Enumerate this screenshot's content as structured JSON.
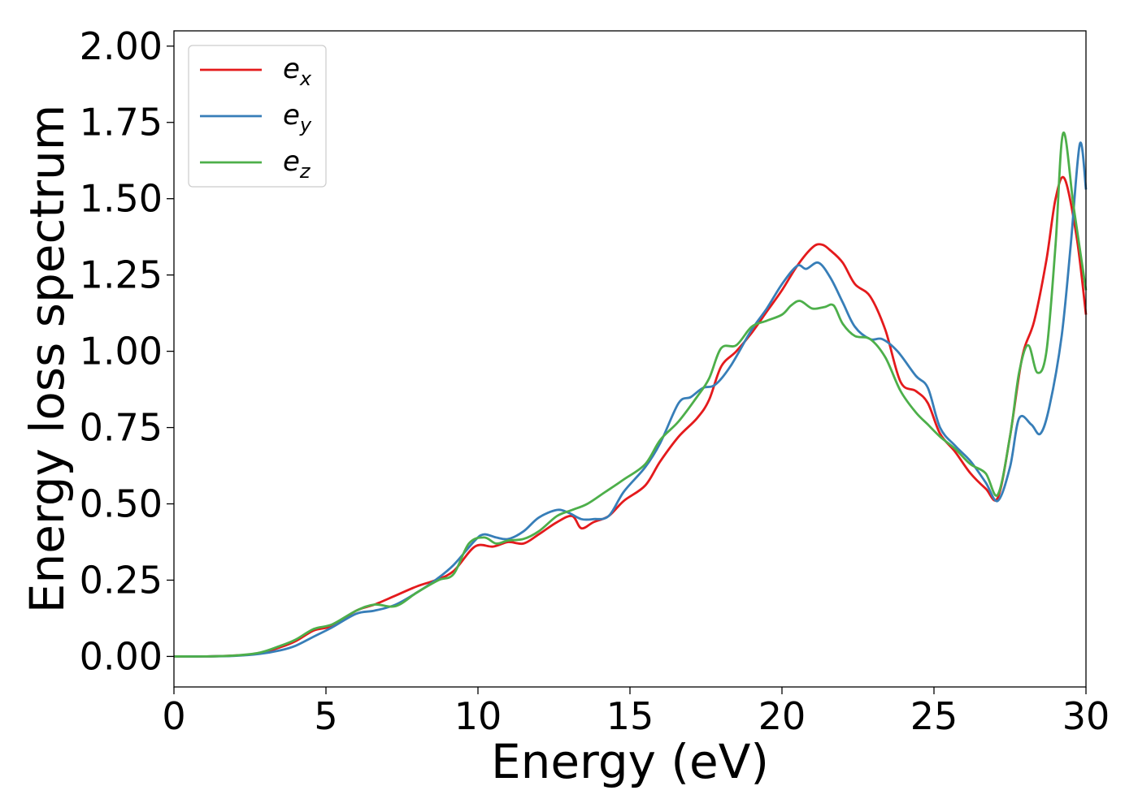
{
  "chart_data": {
    "type": "line",
    "title": "",
    "xlabel": "Energy (eV)",
    "ylabel": "Energy loss spectrum",
    "xlim": [
      0,
      30
    ],
    "ylim": [
      -0.1,
      2.05
    ],
    "xticks": [
      0,
      5,
      10,
      15,
      20,
      25,
      30
    ],
    "xtick_labels": [
      "0",
      "5",
      "10",
      "15",
      "20",
      "25",
      "30"
    ],
    "yticks": [
      0.0,
      0.25,
      0.5,
      0.75,
      1.0,
      1.25,
      1.5,
      1.75,
      2.0
    ],
    "ytick_labels": [
      "0.00",
      "0.25",
      "0.50",
      "0.75",
      "1.00",
      "1.25",
      "1.50",
      "1.75",
      "2.00"
    ],
    "grid": false,
    "legend_position": "top-left",
    "series": [
      {
        "name": "e",
        "subscript": "x",
        "color": "#e41a1c",
        "x": [
          0,
          1,
          2,
          2.8,
          3.5,
          4,
          4.6,
          5.2,
          6,
          6.6,
          7.3,
          8,
          8.6,
          9.2,
          9.9,
          10.5,
          11,
          11.5,
          12,
          12.6,
          13.1,
          13.4,
          13.8,
          14.3,
          14.8,
          15.5,
          16,
          16.6,
          17.2,
          17.6,
          18,
          18.5,
          19,
          19.5,
          20,
          20.5,
          21,
          21.3,
          21.6,
          22,
          22.4,
          22.9,
          23.4,
          23.9,
          24.4,
          24.8,
          25.2,
          25.7,
          26.2,
          26.7,
          27.1,
          27.5,
          27.9,
          28.3,
          28.7,
          29,
          29.3,
          29.7,
          30
        ],
        "y": [
          0.0,
          0.0,
          0.003,
          0.01,
          0.03,
          0.05,
          0.085,
          0.1,
          0.15,
          0.17,
          0.2,
          0.23,
          0.25,
          0.28,
          0.36,
          0.36,
          0.375,
          0.37,
          0.4,
          0.44,
          0.46,
          0.42,
          0.44,
          0.46,
          0.51,
          0.56,
          0.64,
          0.72,
          0.78,
          0.84,
          0.95,
          1.0,
          1.06,
          1.13,
          1.2,
          1.28,
          1.34,
          1.35,
          1.33,
          1.29,
          1.22,
          1.18,
          1.07,
          0.9,
          0.87,
          0.83,
          0.73,
          0.67,
          0.6,
          0.55,
          0.52,
          0.72,
          0.98,
          1.1,
          1.3,
          1.5,
          1.565,
          1.37,
          1.12
        ]
      },
      {
        "name": "e",
        "subscript": "y",
        "color": "#377eb8",
        "x": [
          0,
          1,
          2,
          2.8,
          3.5,
          4,
          4.6,
          5.2,
          6,
          6.6,
          7.3,
          8,
          8.6,
          9.2,
          9.9,
          10.2,
          10.6,
          11,
          11.5,
          12,
          12.6,
          13,
          13.4,
          13.8,
          14.3,
          14.8,
          15.5,
          16,
          16.6,
          17,
          17.4,
          17.8,
          18.3,
          19,
          19.5,
          20,
          20.5,
          20.8,
          21.2,
          21.6,
          22,
          22.4,
          22.9,
          23.3,
          23.8,
          24.4,
          24.8,
          25.2,
          25.7,
          26.2,
          26.7,
          27.1,
          27.5,
          27.8,
          28.2,
          28.5,
          28.8,
          29.2,
          29.5,
          29.8,
          30
        ],
        "y": [
          0.0,
          0.0,
          0.002,
          0.008,
          0.02,
          0.035,
          0.065,
          0.095,
          0.14,
          0.15,
          0.17,
          0.21,
          0.25,
          0.3,
          0.38,
          0.4,
          0.39,
          0.385,
          0.41,
          0.455,
          0.48,
          0.47,
          0.45,
          0.45,
          0.46,
          0.54,
          0.62,
          0.7,
          0.83,
          0.85,
          0.88,
          0.89,
          0.95,
          1.07,
          1.14,
          1.22,
          1.28,
          1.27,
          1.29,
          1.24,
          1.16,
          1.08,
          1.04,
          1.04,
          1.0,
          0.92,
          0.88,
          0.75,
          0.69,
          0.64,
          0.57,
          0.51,
          0.62,
          0.78,
          0.76,
          0.73,
          0.82,
          1.05,
          1.35,
          1.68,
          1.53
        ]
      },
      {
        "name": "e",
        "subscript": "z",
        "color": "#4daf4a",
        "x": [
          0,
          1,
          2,
          2.8,
          3.5,
          4,
          4.6,
          5.2,
          6,
          6.6,
          7.3,
          8,
          8.7,
          9.2,
          9.7,
          10.2,
          10.6,
          11,
          11.5,
          12,
          12.6,
          13.1,
          13.6,
          14.2,
          14.8,
          15.5,
          16,
          16.6,
          17.2,
          17.6,
          18,
          18.5,
          19,
          19.5,
          20,
          20.3,
          20.6,
          21,
          21.4,
          21.7,
          22,
          22.4,
          22.9,
          23.4,
          23.9,
          24.4,
          24.8,
          25.2,
          25.7,
          26.2,
          26.7,
          27.1,
          27.5,
          27.8,
          28.1,
          28.4,
          28.7,
          29,
          29.25,
          29.6,
          30
        ],
        "y": [
          0.0,
          0.0,
          0.003,
          0.012,
          0.035,
          0.055,
          0.09,
          0.105,
          0.15,
          0.17,
          0.165,
          0.21,
          0.25,
          0.27,
          0.37,
          0.39,
          0.37,
          0.38,
          0.385,
          0.41,
          0.46,
          0.48,
          0.5,
          0.54,
          0.58,
          0.63,
          0.71,
          0.77,
          0.85,
          0.91,
          1.01,
          1.02,
          1.08,
          1.1,
          1.12,
          1.15,
          1.165,
          1.14,
          1.145,
          1.15,
          1.09,
          1.05,
          1.04,
          0.98,
          0.87,
          0.8,
          0.76,
          0.72,
          0.68,
          0.63,
          0.6,
          0.53,
          0.72,
          0.93,
          1.02,
          0.93,
          1.0,
          1.35,
          1.715,
          1.47,
          1.2
        ]
      }
    ]
  }
}
